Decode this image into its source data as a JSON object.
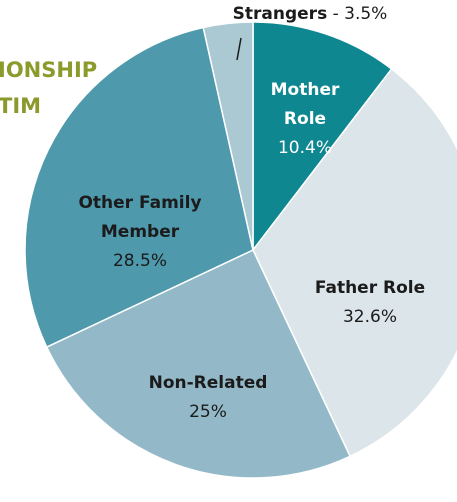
{
  "chart_data": {
    "type": "pie",
    "title_fragments": [
      "IONSHIP",
      "TIM"
    ],
    "categories": [
      "Mother Role",
      "Father Role",
      "Non-Related",
      "Other Family Member",
      "Strangers"
    ],
    "values": [
      10.4,
      32.6,
      25,
      28.5,
      3.5
    ],
    "value_labels": [
      "10.4%",
      "32.6%",
      "25%",
      "28.5%",
      "3.5%"
    ],
    "label_separator": "-",
    "colors": [
      "#0f8791",
      "#dce5e9",
      "#93b9c8",
      "#4e99ac",
      "#aac9d3"
    ]
  }
}
